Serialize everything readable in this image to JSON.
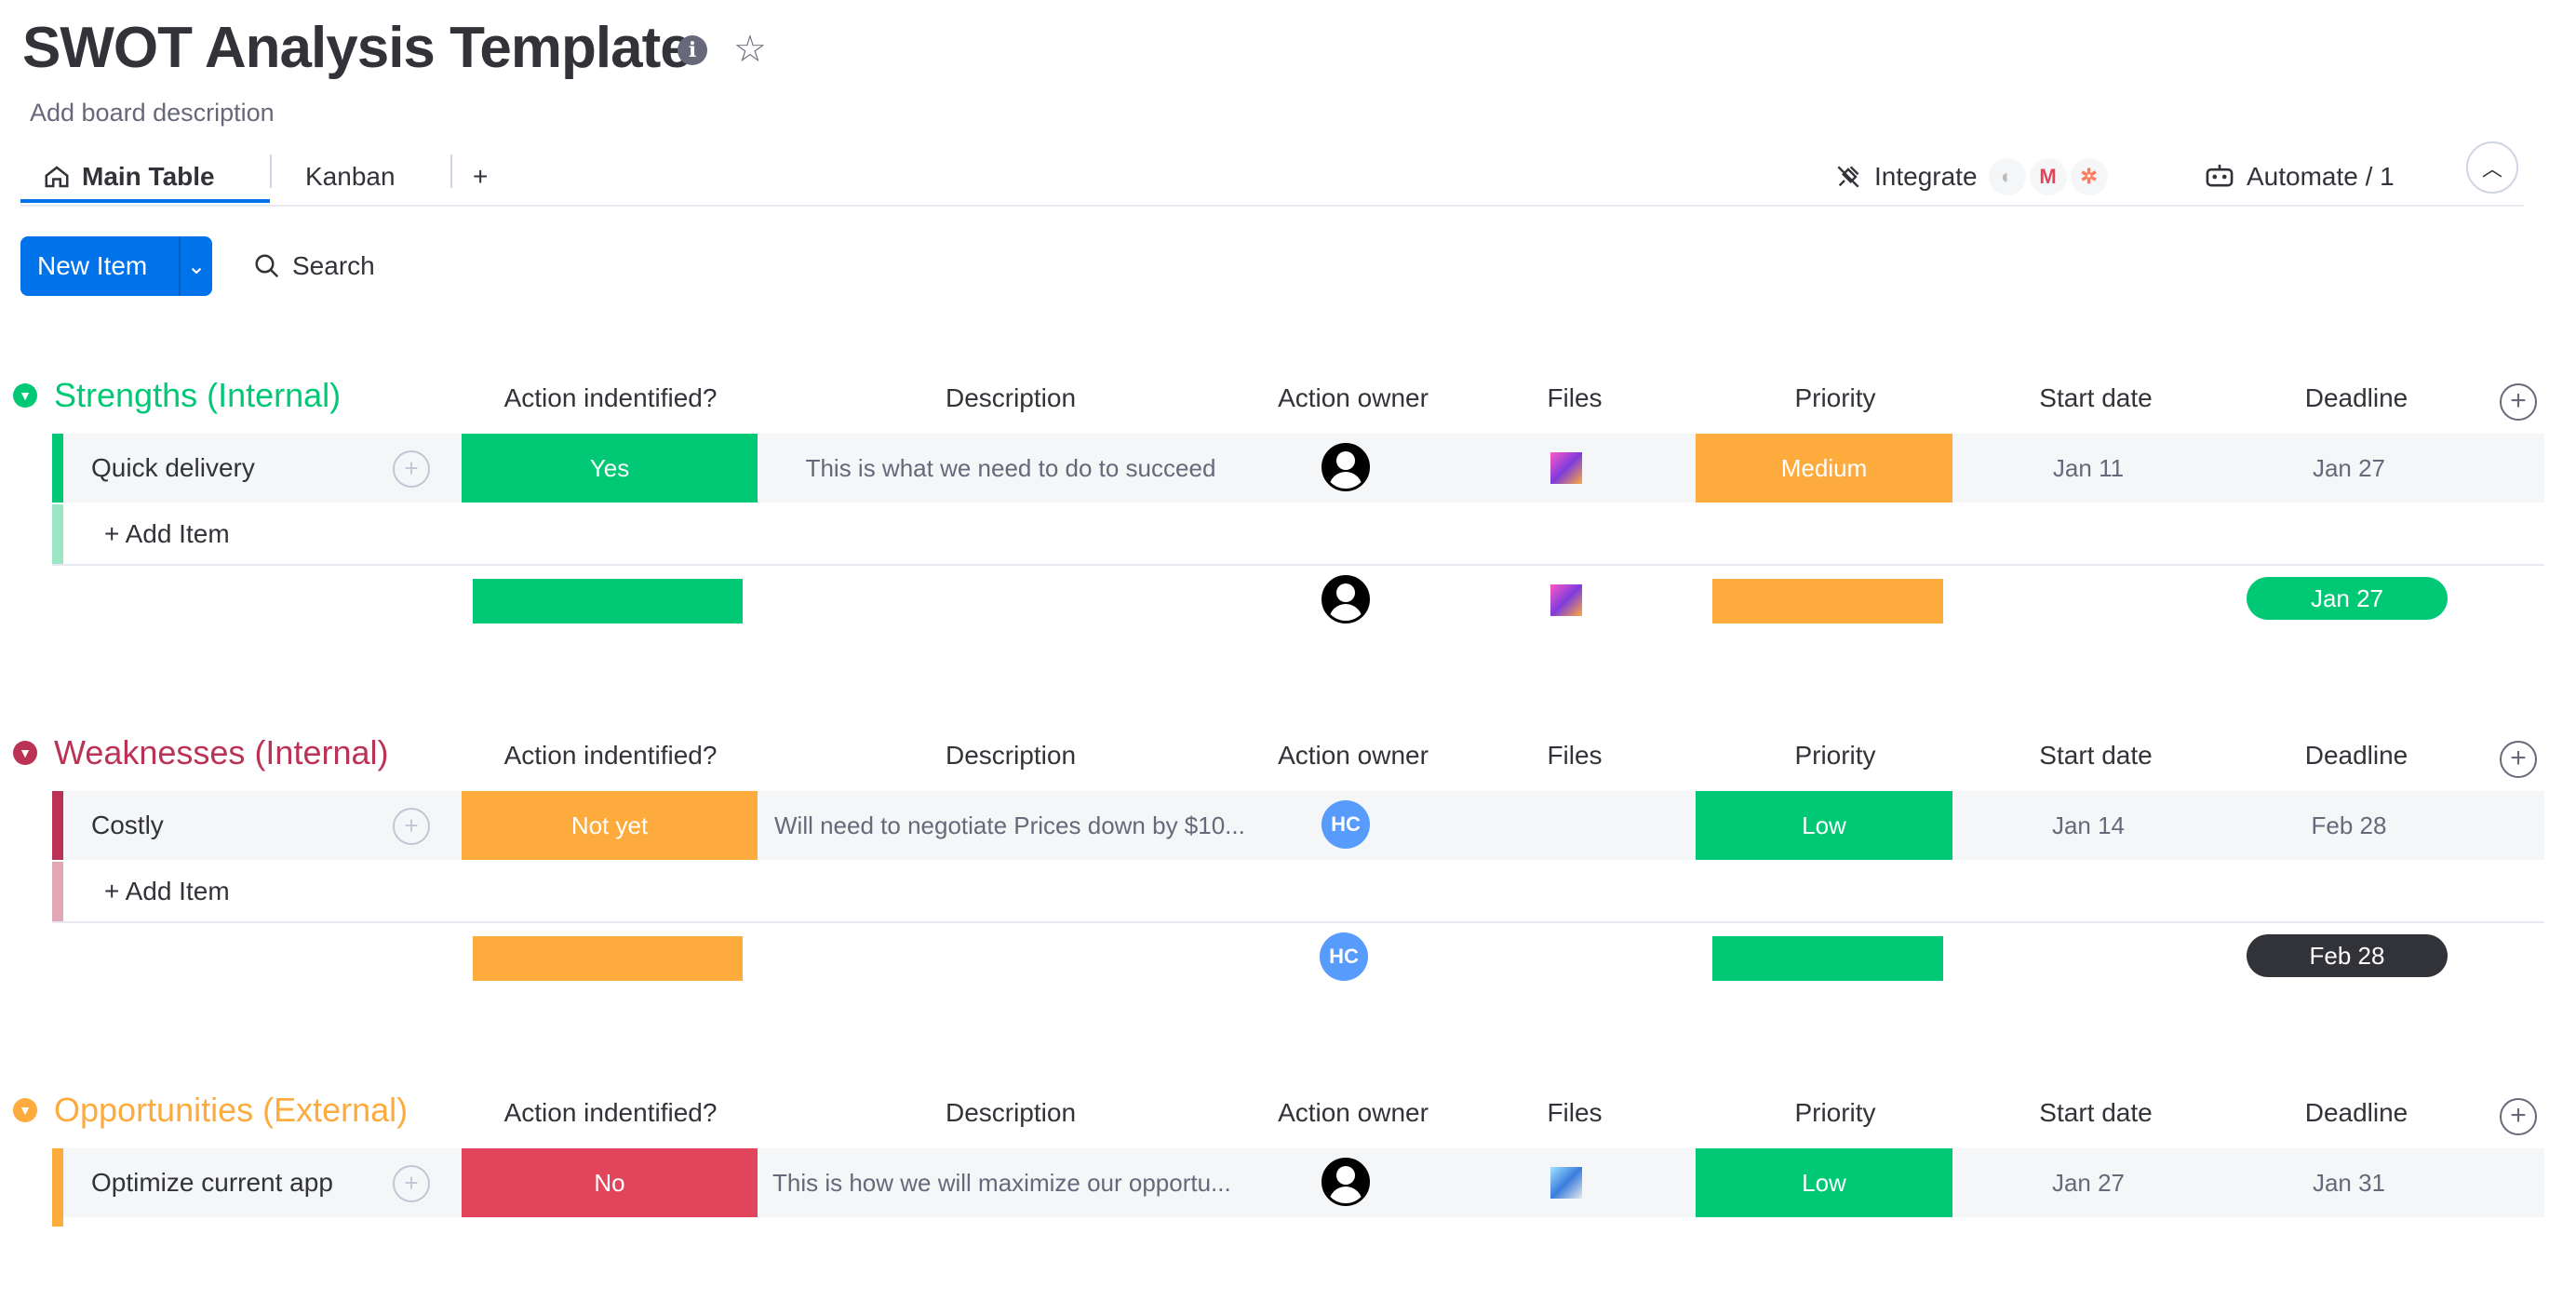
{
  "board": {
    "title": "SWOT Analysis Template",
    "description": "Add board description"
  },
  "tabs": [
    {
      "label": "Main Table",
      "icon": "home-icon",
      "active": true
    },
    {
      "label": "Kanban",
      "active": false
    },
    {
      "label": "+"
    }
  ],
  "toolbar": {
    "integrate_label": "Integrate",
    "automate_label": "Automate / 1",
    "new_item_label": "New Item",
    "search_label": "Search"
  },
  "columns": [
    "Action indentified?",
    "Description",
    "Action owner",
    "Files",
    "Priority",
    "Start date",
    "Deadline"
  ],
  "groups": [
    {
      "title": "Strengths (Internal)",
      "color": "#00c875",
      "items": [
        {
          "name": "Quick delivery",
          "action": "Yes",
          "action_color": "#00c875",
          "description": "This is what we need to do to succeed",
          "owner": "person",
          "owner_initials": "",
          "file": "image",
          "priority": "Medium",
          "priority_color": "#fdab3d",
          "start": "Jan 11",
          "deadline": "Jan 27"
        }
      ],
      "add_item": "+ Add Item",
      "summary_deadline": "Jan 27",
      "summary_deadline_color": "#00c875"
    },
    {
      "title": "Weaknesses (Internal)",
      "color": "#bb3354",
      "items": [
        {
          "name": "Costly",
          "action": "Not yet",
          "action_color": "#fdab3d",
          "description": "Will need to negotiate Prices down by $10...",
          "owner": "initials",
          "owner_initials": "HC",
          "file": "",
          "priority": "Low",
          "priority_color": "#00c875",
          "start": "Jan 14",
          "deadline": "Feb 28"
        }
      ],
      "add_item": "+ Add Item",
      "summary_deadline": "Feb 28",
      "summary_deadline_color": "#323338",
      "summary_owner_initials": "HC"
    },
    {
      "title": "Opportunities (External)",
      "color": "#fdab3d",
      "items": [
        {
          "name": "Optimize current app",
          "action": "No",
          "action_color": "#e2445c",
          "description": "This is how we will maximize our opportu...",
          "owner": "person",
          "owner_initials": "",
          "file": "image",
          "priority": "Low",
          "priority_color": "#00c875",
          "start": "Jan 27",
          "deadline": "Jan 31"
        }
      ]
    }
  ]
}
